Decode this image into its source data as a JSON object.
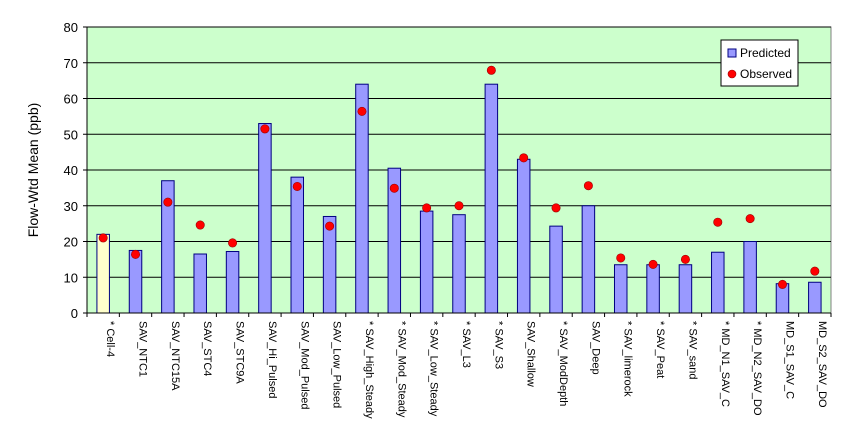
{
  "chart_data": {
    "type": "bar",
    "ylabel": "Flow-Wtd Mean (ppb)",
    "xlabel": "",
    "ylim": [
      0,
      80
    ],
    "yticks": [
      0,
      10,
      20,
      30,
      40,
      50,
      60,
      70,
      80
    ],
    "grid": true,
    "legend_position": "top-right",
    "categories": [
      "* Cell-4",
      "SAV_NTC1",
      "SAV_NTC15A",
      "SAV_STC4",
      "SAV_STC9A",
      "SAV_Hi_Pulsed",
      "SAV_Mod_Pulsed",
      "SAV_Low_Pulsed",
      "* SAV_High_Steady",
      "* SAV_Mod_Steady",
      "* SAV_Low_Steady",
      "* SAV_L3",
      "* SAV_S3",
      "SAV_Shallow",
      "* SAV_ModDepth",
      "SAV_Deep",
      "* SAV_limerock",
      "* SAV_Peat",
      "* SAV_sand",
      "* MD_N1_SAV_C",
      "* MD_N2_SAV_DO",
      "MD_S1_SAV_C",
      "MD_S2_SAV_DO"
    ],
    "highlight_index": 0,
    "series": [
      {
        "name": "Predicted",
        "kind": "bar",
        "color": "#9999ff",
        "highlight_color": "#ffffcc",
        "values": [
          22,
          17.5,
          37,
          16.5,
          17.2,
          53,
          38,
          27,
          64,
          40.5,
          28.5,
          27.5,
          64,
          43,
          24.3,
          30,
          13.5,
          13.5,
          13.5,
          17,
          20,
          8.2,
          8.6
        ]
      },
      {
        "name": "Observed",
        "kind": "marker",
        "color": "#ff0000",
        "values": [
          21,
          16.4,
          31,
          24.6,
          19.6,
          51.5,
          35.4,
          24.3,
          56.4,
          34.9,
          29.4,
          30,
          67.9,
          43.4,
          29.4,
          35.6,
          15.4,
          13.6,
          15,
          25.4,
          26.4,
          8,
          11.7
        ]
      }
    ]
  },
  "colors": {
    "plot_background": "#ccffcc",
    "grid": "#000000",
    "bar_border": "#000080"
  },
  "legend": {
    "predicted_label": "Predicted",
    "observed_label": "Observed"
  }
}
